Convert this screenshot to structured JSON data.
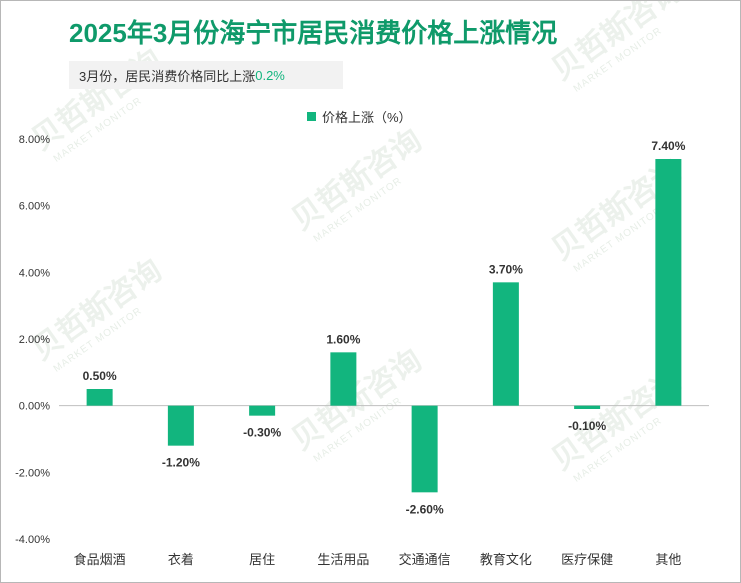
{
  "title": "2025年3月份海宁市居民消费价格上涨情况",
  "subtitle_prefix": "3月份，居民消费价格同比上涨",
  "subtitle_value": "0.2%",
  "watermark": {
    "cn": "贝哲斯咨询",
    "en": "MARKET MONITOR"
  },
  "colors": {
    "bar": "#12b57e",
    "title_green": "#0f9a6a",
    "accent_text": "#12b57e",
    "axis": "#bfbfbf"
  },
  "chart_data": {
    "type": "bar",
    "title": "2025年3月份海宁市居民消费价格上涨情况",
    "categories": [
      "食品烟酒",
      "衣着",
      "居住",
      "生活用品",
      "交通通信",
      "教育文化",
      "医疗保健",
      "其他"
    ],
    "series": [
      {
        "name": "价格上涨（%）",
        "values": [
          0.5,
          -1.2,
          -0.3,
          1.6,
          -2.6,
          3.7,
          -0.1,
          7.4
        ]
      }
    ],
    "data_labels": [
      "0.50%",
      "-1.20%",
      "-0.30%",
      "1.60%",
      "-2.60%",
      "3.70%",
      "-0.10%",
      "7.40%"
    ],
    "ylim": [
      -4,
      8
    ],
    "yticks": [
      8,
      6,
      4,
      2,
      0,
      -2,
      -4
    ],
    "ytick_labels": [
      "8.00%",
      "6.00%",
      "4.00%",
      "2.00%",
      "0.00%",
      "-2.00%",
      "-4.00%"
    ],
    "legend_position": "top-center",
    "grid": false
  }
}
